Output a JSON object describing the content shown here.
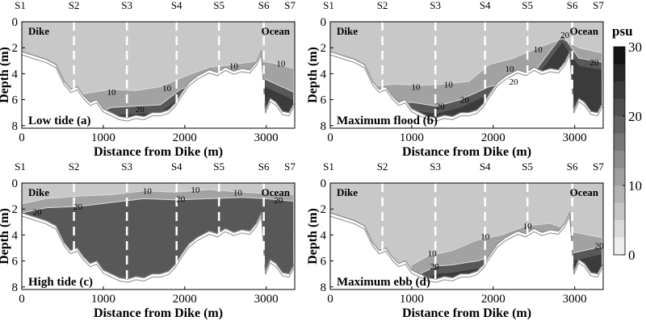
{
  "chart_data": [
    {
      "type": "heatmap",
      "panel_label": "Low tide (a)",
      "xlabel": "Distance from Dike (m)",
      "ylabel": "Depth (m)",
      "xlim": [
        0,
        3350
      ],
      "ylim": [
        8.2,
        0
      ],
      "xticks": [
        0,
        1000,
        2000,
        3000
      ],
      "yticks": [
        0,
        2,
        4,
        6,
        8
      ],
      "stations": [
        {
          "name": "S1",
          "x": 0
        },
        {
          "name": "S2",
          "x": 640
        },
        {
          "name": "S3",
          "x": 1290
        },
        {
          "name": "S4",
          "x": 1900
        },
        {
          "name": "S5",
          "x": 2420
        },
        {
          "name": "S6",
          "x": 2970
        },
        {
          "name": "S7",
          "x": 3300
        }
      ],
      "annotations": [
        {
          "text": "Dike",
          "side": "left"
        },
        {
          "text": "Ocean",
          "side": "right"
        }
      ],
      "contour_labels": [
        {
          "text": "10",
          "x": 1100,
          "y": 5.4
        },
        {
          "text": "10",
          "x": 1780,
          "y": 5.1
        },
        {
          "text": "20",
          "x": 1450,
          "y": 6.7
        },
        {
          "text": "10",
          "x": 2600,
          "y": 3.4
        },
        {
          "text": "10",
          "x": 3180,
          "y": 3.2
        }
      ],
      "interfaces": [
        {
          "psu": 10,
          "points": [
            [
              460,
              6.0
            ],
            [
              800,
              5.5
            ],
            [
              1100,
              5.2
            ],
            [
              1400,
              5.3
            ],
            [
              1700,
              5.0
            ],
            [
              2000,
              4.2
            ],
            [
              2300,
              3.5
            ],
            [
              2600,
              3.3
            ],
            [
              2900,
              3.0
            ],
            [
              3100,
              3.2
            ],
            [
              3330,
              3.6
            ]
          ]
        },
        {
          "psu": 20,
          "points": [
            [
              900,
              7.1
            ],
            [
              1100,
              6.6
            ],
            [
              1400,
              6.5
            ],
            [
              1700,
              6.4
            ],
            [
              1950,
              5.2
            ],
            [
              2300,
              4.3
            ],
            [
              2600,
              4.1
            ],
            [
              2850,
              4.0
            ],
            [
              3050,
              4.6
            ],
            [
              3330,
              5.4
            ]
          ]
        }
      ]
    },
    {
      "type": "heatmap",
      "panel_label": "Maximum  flood (b)",
      "xlabel": "Distance from Dike (m)",
      "ylabel": "Depth (m)",
      "xlim": [
        0,
        3350
      ],
      "ylim": [
        8.2,
        0
      ],
      "xticks": [
        0,
        1000,
        2000,
        3000
      ],
      "yticks": [
        0,
        2,
        4,
        6,
        8
      ],
      "stations": [
        {
          "name": "S1",
          "x": 0
        },
        {
          "name": "S2",
          "x": 640
        },
        {
          "name": "S3",
          "x": 1290
        },
        {
          "name": "S4",
          "x": 1900
        },
        {
          "name": "S5",
          "x": 2420
        },
        {
          "name": "S6",
          "x": 2970
        },
        {
          "name": "S7",
          "x": 3300
        }
      ],
      "annotations": [
        {
          "text": "Dike",
          "side": "left"
        },
        {
          "text": "Ocean",
          "side": "right"
        }
      ],
      "contour_labels": [
        {
          "text": "10",
          "x": 1050,
          "y": 5.0
        },
        {
          "text": "10",
          "x": 1450,
          "y": 4.8
        },
        {
          "text": "20",
          "x": 1350,
          "y": 6.5
        },
        {
          "text": "20",
          "x": 1650,
          "y": 6.0
        },
        {
          "text": "10",
          "x": 2200,
          "y": 3.6
        },
        {
          "text": "20",
          "x": 2250,
          "y": 4.6
        },
        {
          "text": "10",
          "x": 2550,
          "y": 2.1
        },
        {
          "text": "20",
          "x": 2880,
          "y": 1.0
        },
        {
          "text": "20",
          "x": 3240,
          "y": 3.1
        }
      ],
      "interfaces": [
        {
          "psu": 10,
          "points": [
            [
              460,
              5.0
            ],
            [
              800,
              4.8
            ],
            [
              1100,
              4.9
            ],
            [
              1400,
              4.8
            ],
            [
              1700,
              4.6
            ],
            [
              1950,
              3.3
            ],
            [
              2250,
              2.8
            ],
            [
              2550,
              2.0
            ],
            [
              2850,
              1.3
            ],
            [
              3050,
              2.0
            ],
            [
              3330,
              2.4
            ]
          ]
        },
        {
          "psu": 20,
          "points": [
            [
              700,
              6.3
            ],
            [
              1000,
              6.2
            ],
            [
              1300,
              6.5
            ],
            [
              1600,
              6.0
            ],
            [
              1950,
              5.0
            ],
            [
              2250,
              4.6
            ],
            [
              2550,
              3.5
            ],
            [
              2850,
              1.0
            ],
            [
              3050,
              2.8
            ],
            [
              3330,
              3.1
            ]
          ]
        }
      ]
    },
    {
      "type": "heatmap",
      "panel_label": "High tide (c)",
      "xlabel": "Distance from Dike (m)",
      "ylabel": "Depth (m)",
      "xlim": [
        0,
        3350
      ],
      "ylim": [
        8.2,
        0
      ],
      "xticks": [
        0,
        1000,
        2000,
        3000
      ],
      "yticks": [
        0,
        2,
        4,
        6,
        8
      ],
      "stations": [
        {
          "name": "S1",
          "x": 0
        },
        {
          "name": "S2",
          "x": 640
        },
        {
          "name": "S3",
          "x": 1290
        },
        {
          "name": "S4",
          "x": 1900
        },
        {
          "name": "S5",
          "x": 2420
        },
        {
          "name": "S6",
          "x": 2970
        },
        {
          "name": "S7",
          "x": 3300
        }
      ],
      "annotations": [
        {
          "text": "Dike",
          "side": "left"
        },
        {
          "text": "Ocean",
          "side": "right"
        }
      ],
      "contour_labels": [
        {
          "text": "20",
          "x": 190,
          "y": 2.2
        },
        {
          "text": "20",
          "x": 690,
          "y": 1.8
        },
        {
          "text": "10",
          "x": 1540,
          "y": 0.6
        },
        {
          "text": "20",
          "x": 1950,
          "y": 1.2
        },
        {
          "text": "10",
          "x": 2130,
          "y": 0.5
        },
        {
          "text": "10",
          "x": 2650,
          "y": 0.7
        },
        {
          "text": "20",
          "x": 3150,
          "y": 1.3
        }
      ],
      "interfaces": [
        {
          "psu": 10,
          "points": [
            [
              0,
              1.6
            ],
            [
              300,
              1.2
            ],
            [
              700,
              1.0
            ],
            [
              1100,
              0.9
            ],
            [
              1500,
              0.6
            ],
            [
              1900,
              0.7
            ],
            [
              2300,
              0.5
            ],
            [
              2700,
              0.7
            ],
            [
              3000,
              0.8
            ],
            [
              3330,
              0.9
            ]
          ]
        },
        {
          "psu": 20,
          "points": [
            [
              0,
              2.3
            ],
            [
              300,
              1.9
            ],
            [
              700,
              1.8
            ],
            [
              1100,
              1.5
            ],
            [
              1500,
              1.2
            ],
            [
              1900,
              1.3
            ],
            [
              2300,
              1.2
            ],
            [
              2700,
              1.1
            ],
            [
              3000,
              1.2
            ],
            [
              3330,
              1.4
            ]
          ]
        }
      ]
    },
    {
      "type": "heatmap",
      "panel_label": "Maximum  ebb (d)",
      "xlabel": "Distance from Dike (m)",
      "ylabel": "Depth (m)",
      "xlim": [
        0,
        3350
      ],
      "ylim": [
        8.2,
        0
      ],
      "xticks": [
        0,
        1000,
        2000,
        3000
      ],
      "yticks": [
        0,
        2,
        4,
        6,
        8
      ],
      "stations": [
        {
          "name": "S1",
          "x": 0
        },
        {
          "name": "S2",
          "x": 640
        },
        {
          "name": "S3",
          "x": 1290
        },
        {
          "name": "S4",
          "x": 1900
        },
        {
          "name": "S5",
          "x": 2420
        },
        {
          "name": "S6",
          "x": 2970
        },
        {
          "name": "S7",
          "x": 3300
        }
      ],
      "annotations": [
        {
          "text": "Dike",
          "side": "left"
        },
        {
          "text": "Ocean",
          "side": "right"
        }
      ],
      "contour_labels": [
        {
          "text": "10",
          "x": 1250,
          "y": 5.4
        },
        {
          "text": "20",
          "x": 1280,
          "y": 6.4
        },
        {
          "text": "10",
          "x": 1900,
          "y": 4.1
        },
        {
          "text": "10",
          "x": 2420,
          "y": 3.3
        },
        {
          "text": "20",
          "x": 3300,
          "y": 4.8
        }
      ],
      "interfaces": [
        {
          "psu": 10,
          "points": [
            [
              1000,
              6.3
            ],
            [
              1200,
              5.6
            ],
            [
              1500,
              5.2
            ],
            [
              1800,
              4.4
            ],
            [
              2100,
              4.0
            ],
            [
              2400,
              3.3
            ],
            [
              2700,
              3.1
            ],
            [
              3000,
              3.8
            ],
            [
              3330,
              4.2
            ]
          ]
        },
        {
          "psu": 20,
          "points": [
            [
              1100,
              7.0
            ],
            [
              1300,
              6.4
            ],
            [
              1500,
              6.3
            ],
            [
              1800,
              6.0
            ],
            [
              2100,
              5.5
            ],
            [
              2500,
              5.4
            ],
            [
              2900,
              5.5
            ],
            [
              3330,
              4.9
            ]
          ]
        }
      ]
    }
  ],
  "bathymetry": [
    [
      0,
      2.3
    ],
    [
      150,
      2.6
    ],
    [
      300,
      2.9
    ],
    [
      420,
      3.3
    ],
    [
      520,
      4.6
    ],
    [
      600,
      5.2
    ],
    [
      680,
      5.0
    ],
    [
      760,
      5.7
    ],
    [
      840,
      6.2
    ],
    [
      920,
      6.0
    ],
    [
      1000,
      6.7
    ],
    [
      1100,
      7.0
    ],
    [
      1200,
      7.3
    ],
    [
      1300,
      7.4
    ],
    [
      1400,
      7.2
    ],
    [
      1500,
      7.3
    ],
    [
      1600,
      7.0
    ],
    [
      1700,
      7.0
    ],
    [
      1800,
      6.8
    ],
    [
      1880,
      6.3
    ],
    [
      1960,
      5.5
    ],
    [
      2050,
      4.7
    ],
    [
      2150,
      4.2
    ],
    [
      2300,
      3.7
    ],
    [
      2400,
      3.9
    ],
    [
      2500,
      3.5
    ],
    [
      2600,
      3.8
    ],
    [
      2700,
      3.6
    ],
    [
      2800,
      3.7
    ],
    [
      2880,
      3.1
    ],
    [
      2940,
      2.3
    ],
    [
      2990,
      6.8
    ],
    [
      3050,
      5.9
    ],
    [
      3120,
      6.2
    ],
    [
      3200,
      6.9
    ],
    [
      3280,
      7.0
    ],
    [
      3340,
      6.3
    ]
  ],
  "colorbar": {
    "label": "psu",
    "ticks": [
      0,
      10,
      20,
      30
    ],
    "levels": [
      0,
      2.5,
      5,
      7.5,
      10,
      12.5,
      15,
      17.5,
      20,
      22.5,
      25,
      27.5,
      30
    ]
  },
  "colors": {
    "water_low": "#c8c8c8",
    "water_mid": "#a2a2a2",
    "water_high": "#585858",
    "water_max": "#3b3b3b",
    "contour_line": "#dcdcdc",
    "bed_line": "#888888"
  }
}
